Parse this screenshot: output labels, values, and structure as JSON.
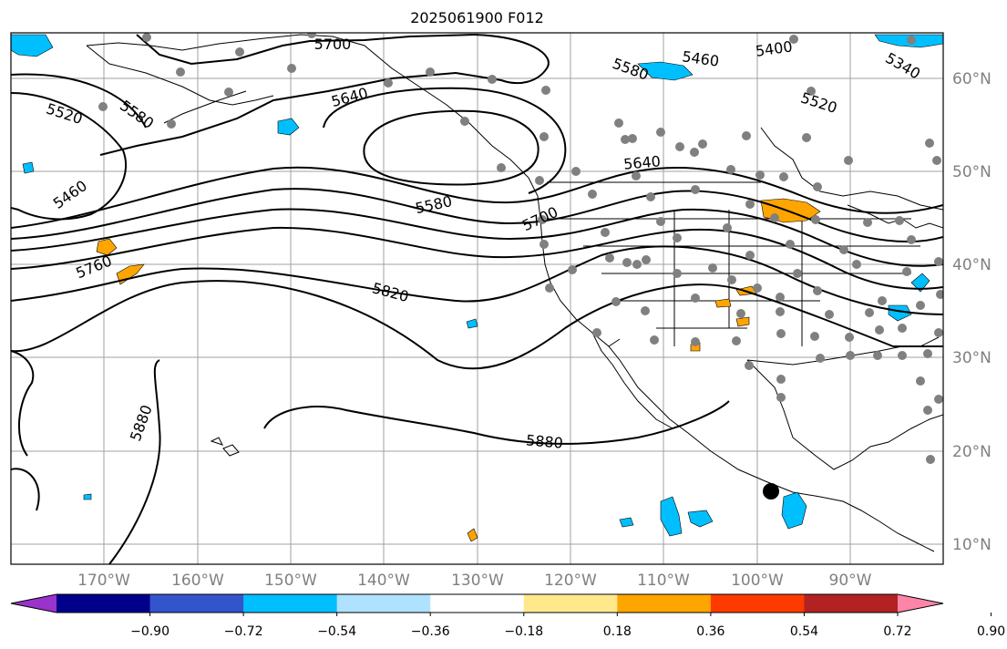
{
  "title": "2025061900 F012",
  "lon_labels": [
    "170°W",
    "160°W",
    "150°W",
    "140°W",
    "130°W",
    "120°W",
    "110°W",
    "100°W",
    "90°W"
  ],
  "lat_labels": [
    "60°N",
    "50°N",
    "40°N",
    "30°N",
    "20°N",
    "10°N"
  ],
  "contour_labels": [
    "5700",
    "5460",
    "5400",
    "5340",
    "5580",
    "5640",
    "5520",
    "5520",
    "5580",
    "5460",
    "5640",
    "5580",
    "5700",
    "5760",
    "5820",
    "5880",
    "5880"
  ],
  "colorbar": {
    "ticks": [
      "−0.90",
      "−0.72",
      "−0.54",
      "−0.36",
      "−0.18",
      "0.18",
      "0.36",
      "0.54",
      "0.72",
      "0.90"
    ],
    "colors": [
      "#9933cc",
      "#00008b",
      "#3355cc",
      "#00bfff",
      "#aee2ff",
      "#ffffff",
      "#ffe98a",
      "#ffa500",
      "#ff3a00",
      "#b22222",
      "#ff85a8"
    ]
  },
  "colors": {
    "contour": "#000000",
    "station": "#808080",
    "grid": "#a0a0a0",
    "negative_blob": "#00bfff",
    "positive_blob": "#ffa500"
  }
}
